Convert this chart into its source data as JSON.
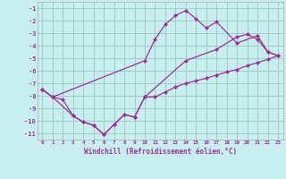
{
  "xlabel": "Windchill (Refroidissement éolien,°C)",
  "bg_color": "#c8eef0",
  "line_color": "#993399",
  "grid_color": "#a0ccc8",
  "xlim": [
    -0.5,
    23.5
  ],
  "ylim": [
    -11.5,
    -0.5
  ],
  "yticks": [
    -1,
    -2,
    -3,
    -4,
    -5,
    -6,
    -7,
    -8,
    -9,
    -10,
    -11
  ],
  "xticks": [
    0,
    1,
    2,
    3,
    4,
    5,
    6,
    7,
    8,
    9,
    10,
    11,
    12,
    13,
    14,
    15,
    16,
    17,
    18,
    19,
    20,
    21,
    22,
    23
  ],
  "series1_x": [
    0,
    1,
    2,
    3,
    4,
    5,
    6,
    7,
    8,
    9,
    10,
    11,
    12,
    13,
    14,
    15,
    16,
    17,
    18,
    19,
    20,
    21,
    22,
    23
  ],
  "series1_y": [
    -7.5,
    -8.1,
    -8.3,
    -9.6,
    -10.1,
    -10.35,
    -11.1,
    -10.3,
    -9.5,
    -9.7,
    -8.1,
    -8.1,
    -7.7,
    -7.3,
    -7.0,
    -6.8,
    -6.6,
    -6.35,
    -6.1,
    -5.9,
    -5.6,
    -5.35,
    -5.1,
    -4.8
  ],
  "series2_x": [
    0,
    1,
    3,
    4,
    5,
    6,
    7,
    8,
    9,
    10,
    14,
    17,
    19,
    20,
    21,
    22,
    23
  ],
  "series2_y": [
    -7.5,
    -8.1,
    -9.6,
    -10.1,
    -10.35,
    -11.1,
    -10.3,
    -9.5,
    -9.7,
    -8.1,
    -5.2,
    -4.3,
    -3.3,
    -3.1,
    -3.5,
    -4.5,
    -4.8
  ],
  "series3_x": [
    0,
    1,
    10,
    11,
    12,
    13,
    14,
    15,
    16,
    17,
    19,
    21,
    22,
    23
  ],
  "series3_y": [
    -7.5,
    -8.1,
    -5.2,
    -3.5,
    -2.3,
    -1.6,
    -1.2,
    -1.85,
    -2.6,
    -2.1,
    -3.8,
    -3.2,
    -4.5,
    -4.8
  ]
}
